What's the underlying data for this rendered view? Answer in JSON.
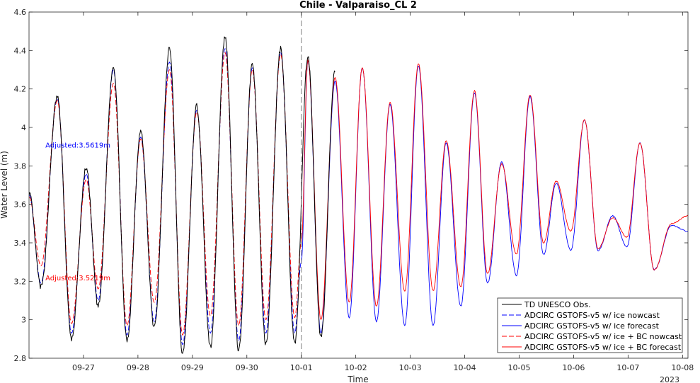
{
  "chart_data": {
    "type": "line",
    "title": "Chile - Valparaiso_CL 2",
    "xlabel": "Time",
    "ylabel": "Water Level (m)",
    "year_label": "2023",
    "ylim": [
      2.8,
      4.6
    ],
    "yticks": [
      2.8,
      3,
      3.2,
      3.4,
      3.6,
      3.8,
      4,
      4.2,
      4.4,
      4.6
    ],
    "ytick_labels": [
      "2.8",
      "3",
      "3.2",
      "3.4",
      "3.6",
      "3.8",
      "4",
      "4.2",
      "4.4",
      "4.6"
    ],
    "xlim_days": [
      0,
      12.1
    ],
    "xticks": [
      {
        "label": "09-27",
        "day": 1
      },
      {
        "label": "09-28",
        "day": 2
      },
      {
        "label": "09-29",
        "day": 3
      },
      {
        "label": "09-30",
        "day": 4
      },
      {
        "label": "10-01",
        "day": 5
      },
      {
        "label": "10-02",
        "day": 6
      },
      {
        "label": "10-03",
        "day": 7
      },
      {
        "label": "10-04",
        "day": 8
      },
      {
        "label": "10-05",
        "day": 9
      },
      {
        "label": "10-06",
        "day": 10
      },
      {
        "label": "10-07",
        "day": 11
      },
      {
        "label": "10-08",
        "day": 12
      }
    ],
    "nowcast_boundary_day": 5,
    "grid": false,
    "legend_position": "bottom-right",
    "annotations": [
      {
        "text": "Adjusted:3.5619m",
        "color": "#0000ff",
        "day": 0.3,
        "y": 3.91
      },
      {
        "text": "Adjusted:3.5219m",
        "color": "#ff0000",
        "day": 0.3,
        "y": 3.22
      }
    ],
    "extrema": {
      "days": [
        0.0,
        0.22,
        0.52,
        0.78,
        1.05,
        1.27,
        1.55,
        1.8,
        2.05,
        2.3,
        2.58,
        2.82,
        3.08,
        3.33,
        3.6,
        3.85,
        4.1,
        4.35,
        4.62,
        4.88,
        5.12,
        5.36,
        5.62,
        5.88,
        6.12,
        6.38,
        6.63,
        6.9,
        7.15,
        7.42,
        7.66,
        7.93,
        8.18,
        8.42,
        8.68,
        8.95,
        9.2,
        9.45,
        9.68,
        9.95,
        10.2,
        10.45,
        10.72,
        10.98,
        11.22,
        11.48,
        11.8,
        12.1
      ],
      "obs": [
        3.66,
        3.17,
        4.16,
        2.9,
        3.79,
        3.07,
        4.32,
        2.89,
        3.98,
        2.96,
        4.41,
        2.82,
        4.11,
        2.86,
        4.47,
        2.84,
        4.33,
        2.87,
        4.41,
        2.88,
        4.37,
        2.91,
        4.29
      ]
    },
    "series": [
      {
        "name": "TD UNESCO Obs.",
        "color": "#000000",
        "dash": "solid",
        "days": [
          0.0,
          0.22,
          0.52,
          0.78,
          1.05,
          1.27,
          1.55,
          1.8,
          2.05,
          2.3,
          2.58,
          2.82,
          3.08,
          3.33,
          3.6,
          3.85,
          4.1,
          4.35,
          4.62,
          4.88,
          5.12,
          5.36,
          5.62
        ],
        "values": [
          3.66,
          3.17,
          4.16,
          2.9,
          3.79,
          3.07,
          4.32,
          2.89,
          3.98,
          2.96,
          4.41,
          2.82,
          4.11,
          2.86,
          4.47,
          2.84,
          4.33,
          2.87,
          4.41,
          2.88,
          4.37,
          2.91,
          4.29
        ]
      },
      {
        "name": "ADCIRC GSTOFS-v5  w/ ice nowcast",
        "color": "#0000ff",
        "dash": "dashed",
        "days": [
          0.0,
          0.22,
          0.52,
          0.78,
          1.05,
          1.27,
          1.55,
          1.8,
          2.05,
          2.3,
          2.58,
          2.82,
          3.08,
          3.33,
          3.6,
          3.85,
          4.1,
          4.35,
          4.62,
          4.88,
          5.0
        ],
        "values": [
          3.65,
          3.19,
          4.15,
          2.93,
          3.76,
          3.1,
          4.3,
          2.92,
          3.95,
          2.99,
          4.34,
          2.87,
          4.09,
          2.93,
          4.41,
          2.89,
          4.31,
          2.93,
          4.39,
          2.93,
          3.3
        ]
      },
      {
        "name": "ADCIRC GSTOFS-v5  w/ ice forecast",
        "color": "#0000ff",
        "dash": "solid",
        "days": [
          5.0,
          5.12,
          5.36,
          5.62,
          5.88,
          6.12,
          6.38,
          6.63,
          6.9,
          7.15,
          7.42,
          7.66,
          7.93,
          8.18,
          8.42,
          8.68,
          8.95,
          9.2,
          9.45,
          9.68,
          9.95,
          10.2,
          10.45,
          10.72,
          10.98,
          11.22,
          11.48,
          11.8,
          12.1
        ],
        "values": [
          3.3,
          4.35,
          2.93,
          4.24,
          3.01,
          4.31,
          2.99,
          4.12,
          2.97,
          4.32,
          2.97,
          3.92,
          3.07,
          4.18,
          3.19,
          3.82,
          3.23,
          4.16,
          3.34,
          3.71,
          3.36,
          4.04,
          3.36,
          3.54,
          3.38,
          3.92,
          3.26,
          3.49,
          3.46
        ]
      },
      {
        "name": "ADCIRC GSTOFS-v5  w/ ice + BC nowcast",
        "color": "#ff0000",
        "dash": "dashed",
        "days": [
          0.0,
          0.22,
          0.52,
          0.78,
          1.05,
          1.27,
          1.55,
          1.8,
          2.05,
          2.3,
          2.58,
          2.82,
          3.08,
          3.33,
          3.6,
          3.85,
          4.1,
          4.35,
          4.62,
          4.88,
          5.0
        ],
        "values": [
          3.64,
          3.28,
          4.14,
          2.98,
          3.73,
          3.16,
          4.23,
          2.97,
          3.94,
          3.09,
          4.3,
          2.92,
          4.08,
          3.02,
          4.39,
          2.97,
          4.3,
          3.0,
          4.38,
          3.01,
          3.4
        ]
      },
      {
        "name": "ADCIRC GSTOFS-v5  w/ ice + BC forecast",
        "color": "#ff0000",
        "dash": "solid",
        "days": [
          5.0,
          5.12,
          5.36,
          5.62,
          5.88,
          6.12,
          6.38,
          6.63,
          6.9,
          7.15,
          7.42,
          7.66,
          7.93,
          8.18,
          8.42,
          8.68,
          8.95,
          9.2,
          9.45,
          9.68,
          9.95,
          10.2,
          10.45,
          10.72,
          10.98,
          11.22,
          11.48,
          11.8,
          12.1
        ],
        "values": [
          3.4,
          4.35,
          3.0,
          4.26,
          3.09,
          4.31,
          3.07,
          4.13,
          3.15,
          4.33,
          3.15,
          3.93,
          3.17,
          4.19,
          3.24,
          3.81,
          3.34,
          4.17,
          3.4,
          3.72,
          3.46,
          4.04,
          3.37,
          3.53,
          3.43,
          3.92,
          3.26,
          3.5,
          3.54
        ]
      }
    ]
  }
}
